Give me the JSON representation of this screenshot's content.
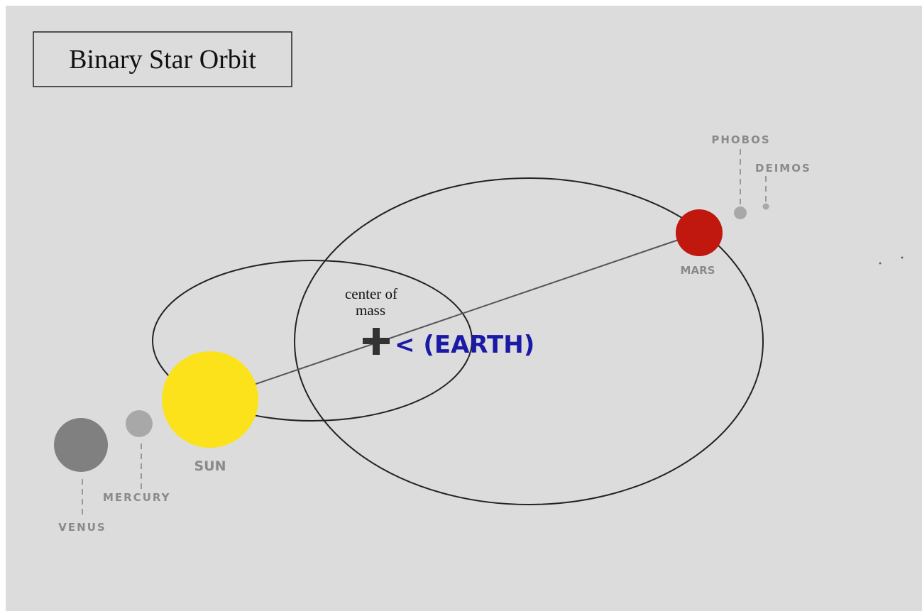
{
  "title": "Binary Star Orbit",
  "center_of_mass": {
    "lines": [
      "center of",
      "mass"
    ]
  },
  "earth_label": "< (EARTH)",
  "bodies": [
    {
      "label": "SUN"
    },
    {
      "label": "MARS"
    },
    {
      "label": "PHOBOS"
    },
    {
      "label": "DEIMOS"
    },
    {
      "label": "MERCURY"
    },
    {
      "label": "VENUS"
    }
  ]
}
